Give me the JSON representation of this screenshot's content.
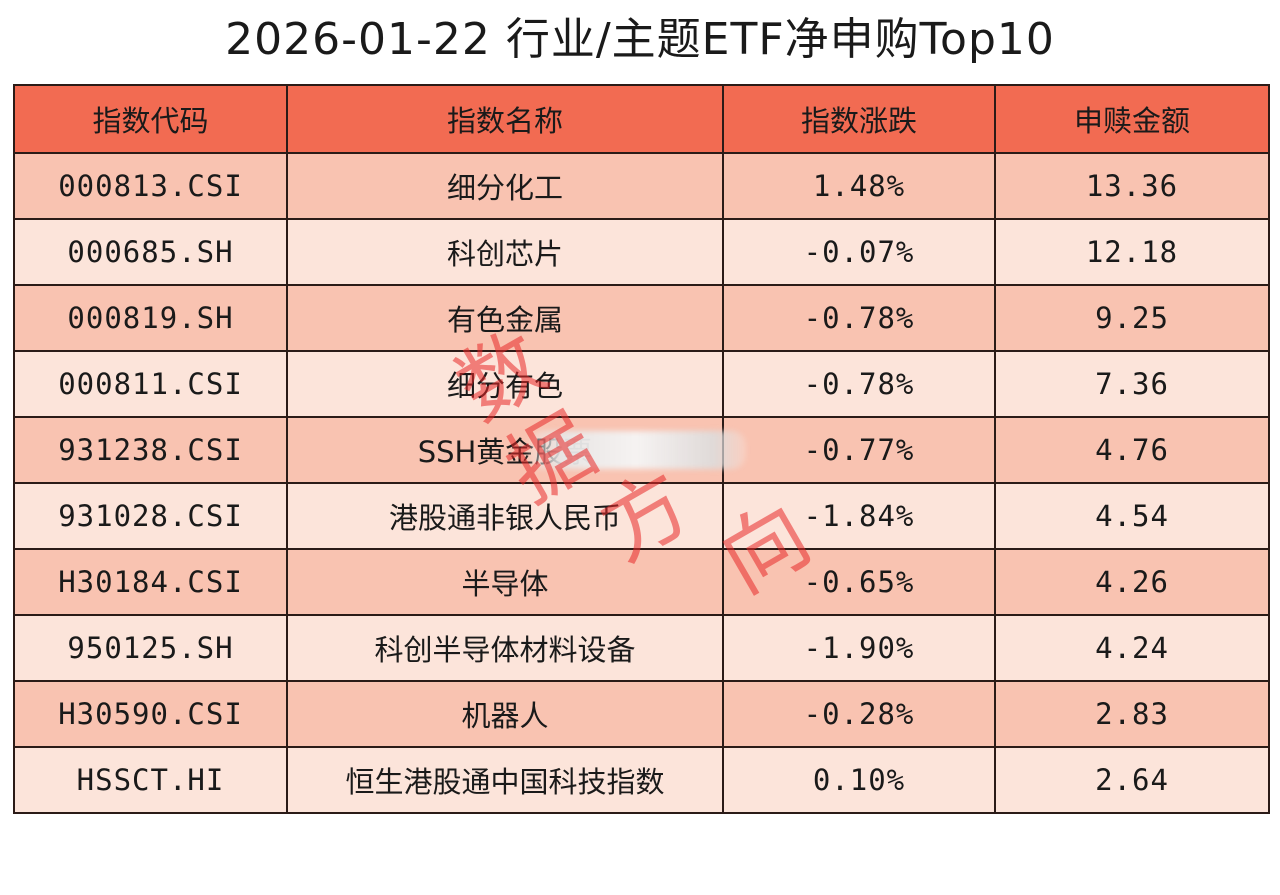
{
  "title": "2026-01-22 行业/主题ETF净申购Top10",
  "table": {
    "headers": [
      "指数代码",
      "指数名称",
      "指数涨跌",
      "申赎金额"
    ],
    "rows": [
      {
        "code": "000813.CSI",
        "name": "细分化工",
        "change": "1.48%",
        "amount": "13.36"
      },
      {
        "code": "000685.SH",
        "name": "科创芯片",
        "change": "-0.07%",
        "amount": "12.18"
      },
      {
        "code": "000819.SH",
        "name": "有色金属",
        "change": "-0.78%",
        "amount": "9.25"
      },
      {
        "code": "000811.CSI",
        "name": "细分有色",
        "change": "-0.78%",
        "amount": "7.36"
      },
      {
        "code": "931238.CSI",
        "name": "SSH黄金股票",
        "change": "-0.77%",
        "amount": "4.76"
      },
      {
        "code": "931028.CSI",
        "name": "港股通非银人民币",
        "change": "-1.84%",
        "amount": "4.54"
      },
      {
        "code": "H30184.CSI",
        "name": "半导体",
        "change": "-0.65%",
        "amount": "4.26"
      },
      {
        "code": "950125.SH",
        "name": "科创半导体材料设备",
        "change": "-1.90%",
        "amount": "4.24"
      },
      {
        "code": "H30590.CSI",
        "name": "机器人",
        "change": "-0.28%",
        "amount": "2.83"
      },
      {
        "code": "HSSCT.HI",
        "name": "恒生港股通中国科技指数",
        "change": "0.10%",
        "amount": "2.64"
      }
    ]
  },
  "watermark": [
    "数",
    "据",
    "方",
    "向"
  ],
  "colors": {
    "header_bg": "#f26b52",
    "row_odd_bg": "#f9c3b1",
    "row_even_bg": "#fce4da",
    "watermark": "#e82828"
  }
}
